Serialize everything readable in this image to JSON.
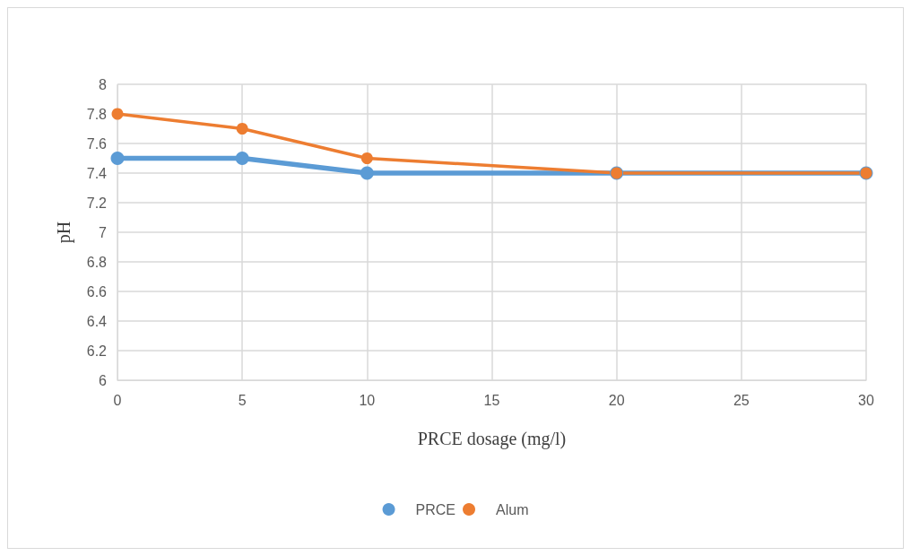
{
  "chart_data": {
    "type": "line",
    "xlabel": "PRCE dosage (mg/l)",
    "ylabel": "pH",
    "x": [
      0,
      5,
      10,
      20,
      30
    ],
    "series": [
      {
        "name": "PRCE",
        "color": "#5b9bd5",
        "values": [
          7.5,
          7.5,
          7.4,
          7.4,
          7.4
        ]
      },
      {
        "name": "Alum",
        "color": "#ed7d31",
        "values": [
          7.8,
          7.7,
          7.5,
          7.4,
          7.4
        ]
      }
    ],
    "xlim": [
      0,
      30
    ],
    "xticks": [
      0,
      5,
      10,
      15,
      20,
      25,
      30
    ],
    "ylim": [
      6,
      8
    ],
    "yticks": [
      6,
      6.2,
      6.4,
      6.6,
      6.8,
      7,
      7.2,
      7.4,
      7.6,
      7.8,
      8
    ],
    "grid": true,
    "legend": "bottom",
    "marker": "circle",
    "line_style": "solid"
  }
}
